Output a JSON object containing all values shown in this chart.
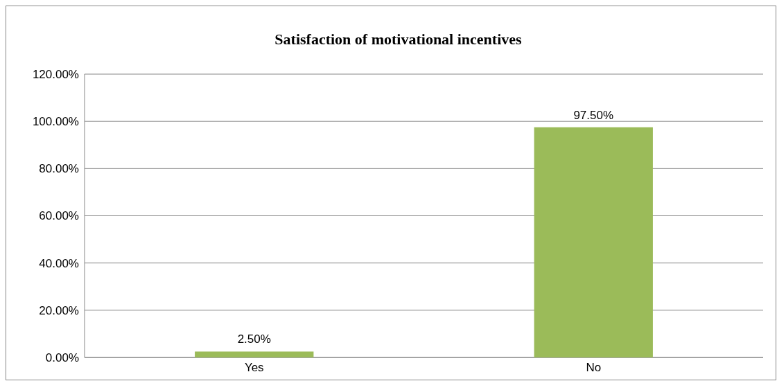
{
  "chart_data": {
    "type": "bar",
    "title": "Satisfaction of motivational incentives",
    "categories": [
      "Yes",
      "No"
    ],
    "values": [
      2.5,
      97.5
    ],
    "value_labels": [
      "2.50%",
      "97.50%"
    ],
    "color": "#9bbb59",
    "ylim": [
      0,
      120
    ],
    "yticks": [
      {
        "value": 0,
        "label": "0.00%"
      },
      {
        "value": 20,
        "label": "20.00%"
      },
      {
        "value": 40,
        "label": "40.00%"
      },
      {
        "value": 60,
        "label": "60.00%"
      },
      {
        "value": 80,
        "label": "80.00%"
      },
      {
        "value": 100,
        "label": "100.00%"
      },
      {
        "value": 120,
        "label": "120.00%"
      }
    ],
    "grid": "y"
  }
}
